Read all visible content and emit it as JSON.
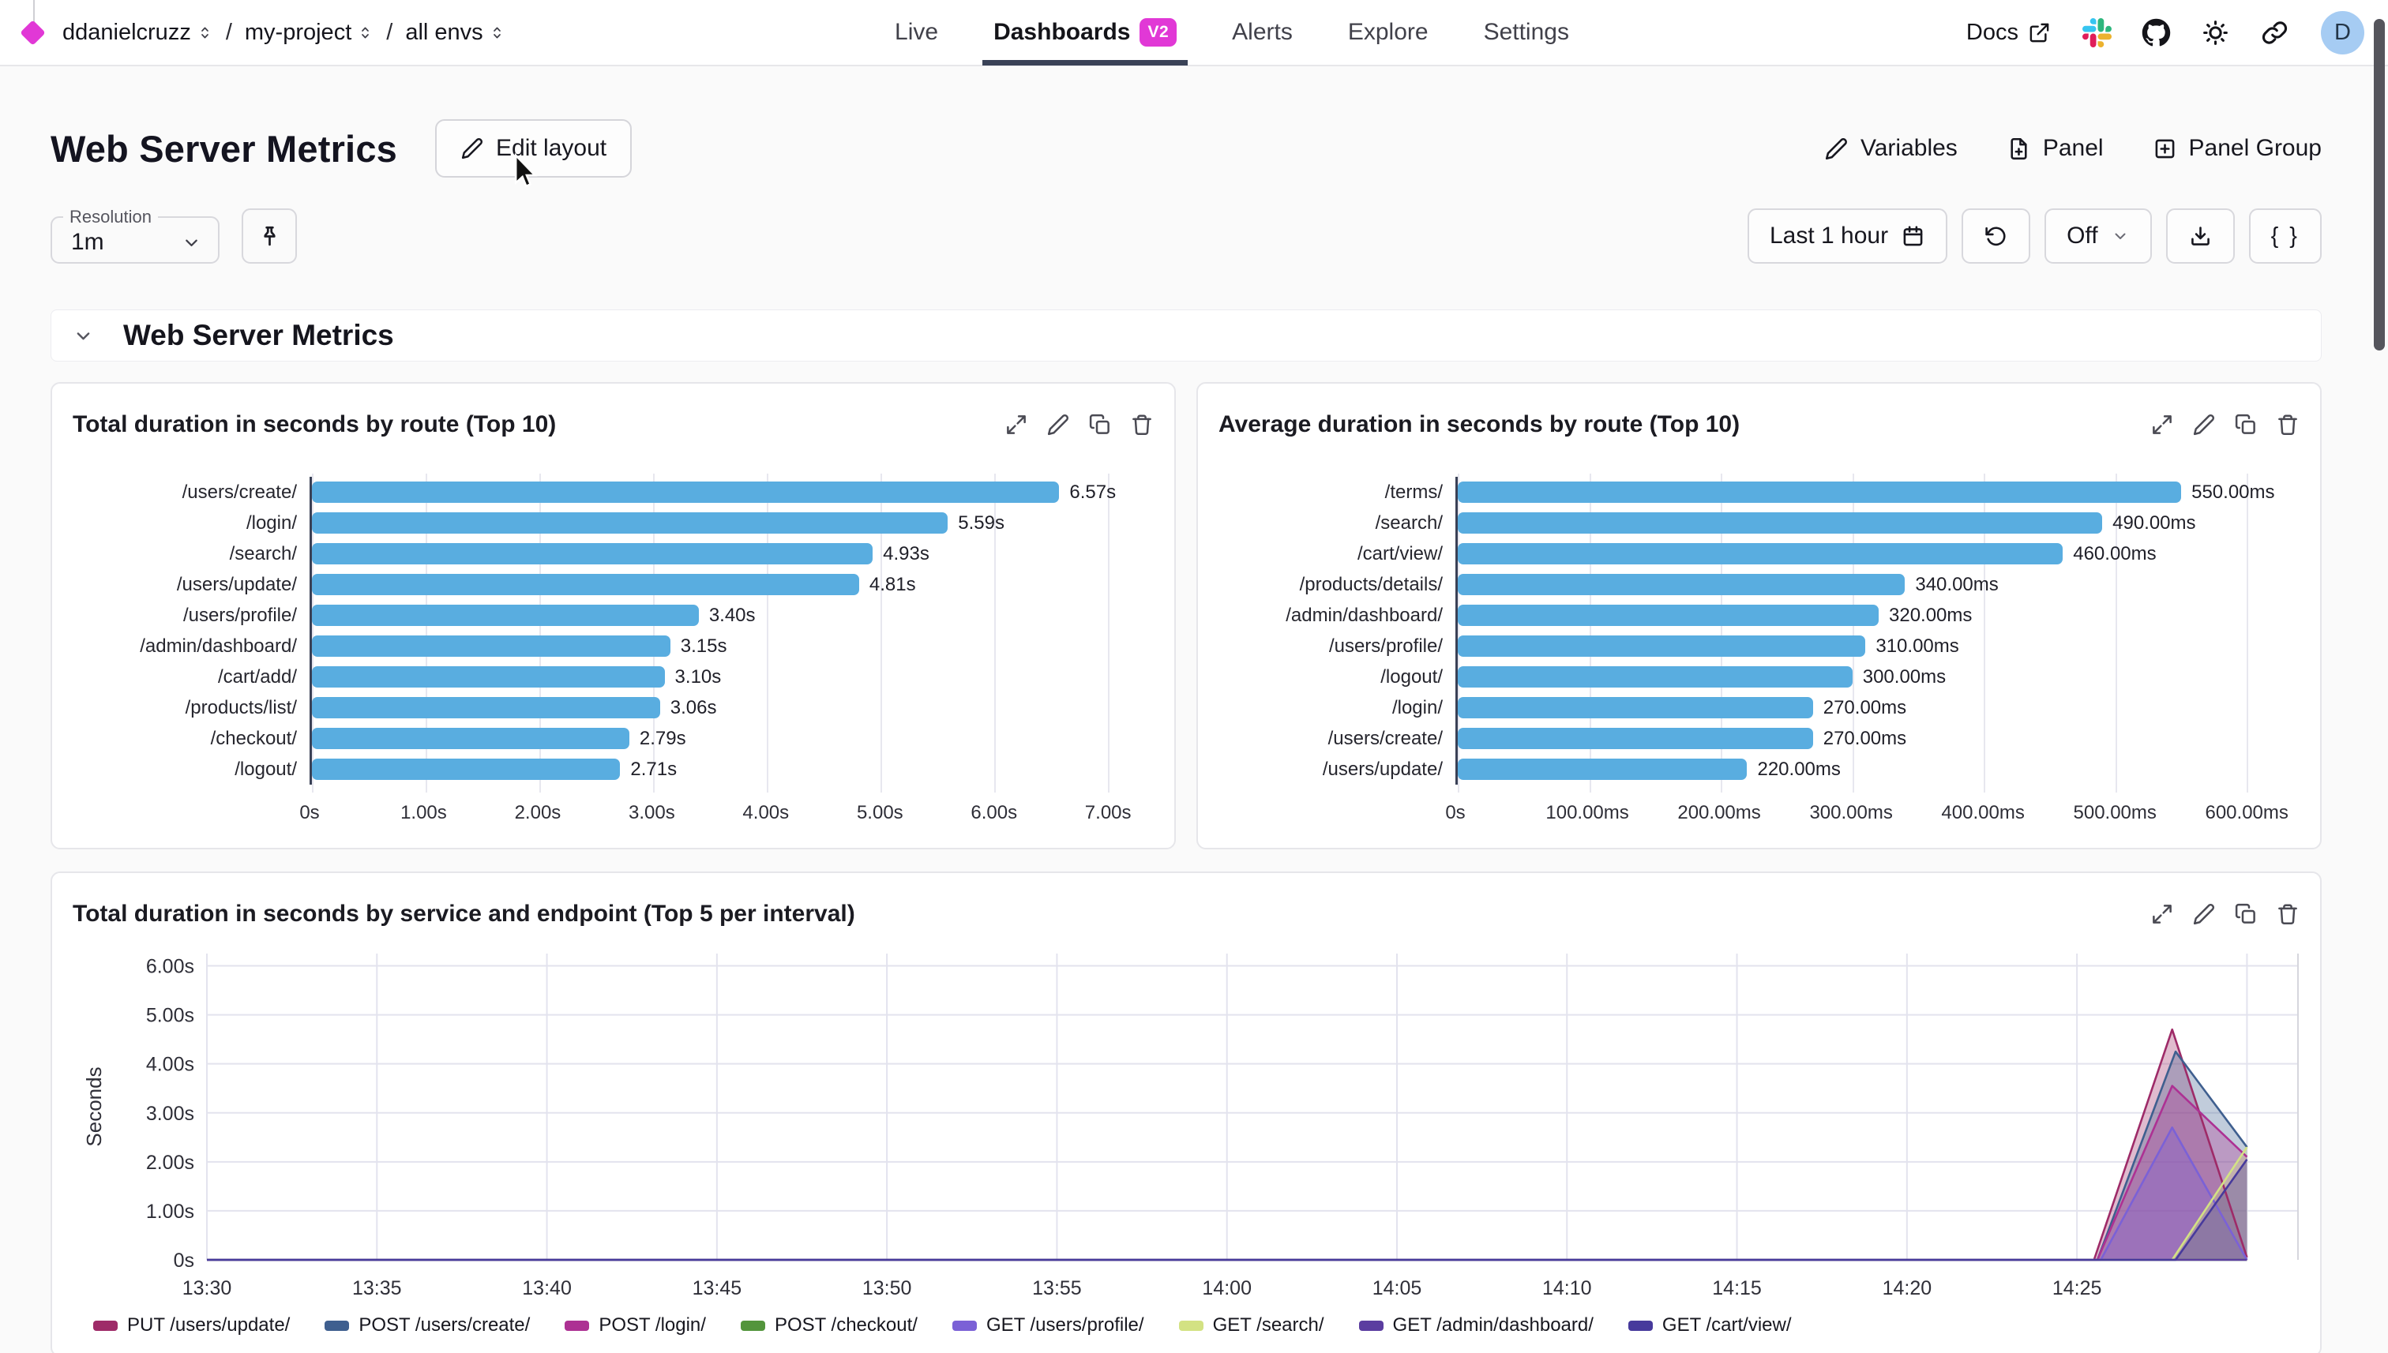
{
  "nav": {
    "breadcrumb": [
      {
        "label": "ddanielcruzz"
      },
      {
        "label": "my-project"
      },
      {
        "label": "all envs"
      }
    ],
    "breadcrumb_separator": "/",
    "tabs": [
      {
        "label": "Live",
        "active": false
      },
      {
        "label": "Dashboards",
        "badge": "V2",
        "active": true
      },
      {
        "label": "Alerts",
        "active": false
      },
      {
        "label": "Explore",
        "active": false
      },
      {
        "label": "Settings",
        "active": false
      }
    ],
    "docs_label": "Docs",
    "icon_buttons": [
      {
        "name": "slack",
        "icon": "slack"
      },
      {
        "name": "github",
        "icon": "github"
      },
      {
        "name": "theme-sun",
        "icon": "sun"
      },
      {
        "name": "share-link",
        "icon": "link"
      }
    ],
    "avatar_letter": "D"
  },
  "toolbar": {
    "title": "Web Server Metrics",
    "edit_layout_label": "Edit layout",
    "actions": [
      {
        "icon": "pencil",
        "label": "Variables"
      },
      {
        "icon": "file-plus",
        "label": "Panel"
      },
      {
        "icon": "square-plus",
        "label": "Panel Group"
      }
    ]
  },
  "controls": {
    "resolution_label": "Resolution",
    "resolution_value": "1m",
    "time_range_label": "Last 1 hour",
    "auto_refresh_label": "Off",
    "braces_label": "{ }"
  },
  "section": {
    "title": "Web Server Metrics"
  },
  "panels": {
    "actions": [
      {
        "name": "expand",
        "icon": "expand"
      },
      {
        "name": "edit",
        "icon": "pencil"
      },
      {
        "name": "duplicate",
        "icon": "copy"
      },
      {
        "name": "delete",
        "icon": "trash"
      }
    ]
  },
  "chart_data": [
    {
      "type": "bar",
      "title": "Total duration in seconds by route (Top 10)",
      "orientation": "horizontal",
      "bar_color": "#59ade0",
      "categories": [
        "/users/create/",
        "/login/",
        "/search/",
        "/users/update/",
        "/users/profile/",
        "/admin/dashboard/",
        "/cart/add/",
        "/products/list/",
        "/checkout/",
        "/logout/"
      ],
      "values": [
        6.57,
        5.59,
        4.93,
        4.81,
        3.4,
        3.15,
        3.1,
        3.06,
        2.79,
        2.71
      ],
      "value_labels": [
        "6.57s",
        "5.59s",
        "4.93s",
        "4.81s",
        "3.40s",
        "3.15s",
        "3.10s",
        "3.06s",
        "2.79s",
        "2.71s"
      ],
      "x_ticks": [
        "0s",
        "1.00s",
        "2.00s",
        "3.00s",
        "4.00s",
        "5.00s",
        "6.00s",
        "7.00s"
      ],
      "tick_step": 1,
      "xlim": [
        0,
        7.4
      ]
    },
    {
      "type": "bar",
      "title": "Average duration in seconds by route (Top 10)",
      "orientation": "horizontal",
      "bar_color": "#59ade0",
      "categories": [
        "/terms/",
        "/search/",
        "/cart/view/",
        "/products/details/",
        "/admin/dashboard/",
        "/users/profile/",
        "/logout/",
        "/login/",
        "/users/create/",
        "/users/update/"
      ],
      "values": [
        550,
        490,
        460,
        340,
        320,
        310,
        300,
        270,
        270,
        220
      ],
      "value_labels": [
        "550.00ms",
        "490.00ms",
        "460.00ms",
        "340.00ms",
        "320.00ms",
        "310.00ms",
        "300.00ms",
        "270.00ms",
        "270.00ms",
        "220.00ms"
      ],
      "x_ticks": [
        "0s",
        "100.00ms",
        "200.00ms",
        "300.00ms",
        "400.00ms",
        "500.00ms",
        "600.00ms"
      ],
      "tick_step": 100,
      "xlim": [
        0,
        640
      ]
    },
    {
      "type": "area",
      "title": "Total duration in seconds by service and endpoint (Top 5 per interval)",
      "ylabel": "Seconds",
      "y_ticks": [
        "0s",
        "1.00s",
        "2.00s",
        "3.00s",
        "4.00s",
        "5.00s",
        "6.00s"
      ],
      "x_ticks": [
        "13:30",
        "13:35",
        "13:40",
        "13:45",
        "13:50",
        "13:55",
        "14:00",
        "14:05",
        "14:10",
        "14:15",
        "14:20",
        "14:25"
      ],
      "xlim": [
        0,
        61.5
      ],
      "ylim": [
        0,
        6.25
      ],
      "grid": true,
      "legend_position": "bottom",
      "series": [
        {
          "name": "PUT /users/update/",
          "color": "#9e2b68",
          "points": [
            [
              0,
              0
            ],
            [
              55.5,
              0
            ],
            [
              57.8,
              4.7
            ],
            [
              60,
              0.05
            ]
          ]
        },
        {
          "name": "POST /users/create/",
          "color": "#3f5f8f",
          "points": [
            [
              0,
              0
            ],
            [
              55.6,
              0
            ],
            [
              57.9,
              4.25
            ],
            [
              60,
              2.3
            ]
          ]
        },
        {
          "name": "POST /login/",
          "color": "#ad3193",
          "points": [
            [
              0,
              0
            ],
            [
              55.6,
              0
            ],
            [
              57.8,
              3.55
            ],
            [
              60,
              2.1
            ]
          ]
        },
        {
          "name": "POST /checkout/",
          "color": "#53953c",
          "points": [
            [
              0,
              0
            ],
            [
              60,
              0
            ]
          ]
        },
        {
          "name": "GET /users/profile/",
          "color": "#7b61d6",
          "points": [
            [
              0,
              0
            ],
            [
              55.7,
              0
            ],
            [
              57.8,
              2.7
            ],
            [
              60,
              0
            ]
          ]
        },
        {
          "name": "GET /search/",
          "color": "#d3e283",
          "points": [
            [
              0,
              0
            ],
            [
              57.8,
              0
            ],
            [
              60,
              2.3
            ]
          ]
        },
        {
          "name": "GET /admin/dashboard/",
          "color": "#5b3da0",
          "points": [
            [
              0,
              0
            ],
            [
              60,
              0
            ]
          ]
        },
        {
          "name": "GET /cart/view/",
          "color": "#473a9c",
          "points": [
            [
              0,
              0
            ],
            [
              57.9,
              0
            ],
            [
              60,
              2.05
            ]
          ]
        }
      ]
    }
  ],
  "colors": {
    "accent_magenta": "#e138d6",
    "bar_blue": "#59ade0",
    "tab_underline": "#3a4257",
    "avatar_bg": "#a6ccf3",
    "axis_line": "#3a4156",
    "gridline": "#e3e3ee"
  }
}
